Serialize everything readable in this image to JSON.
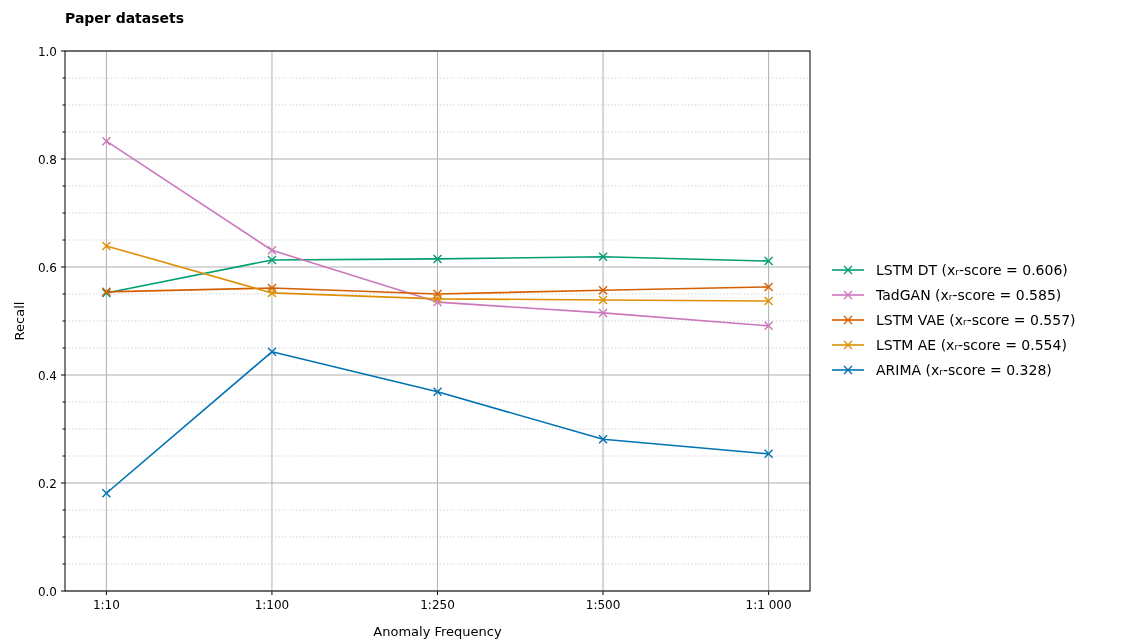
{
  "chart_data": {
    "type": "line",
    "title": "Paper datasets",
    "xlabel": "Anomaly Frequency",
    "ylabel": "Recall",
    "categories": [
      "1:10",
      "1:100",
      "1:250",
      "1:500",
      "1:1 000"
    ],
    "ylim": [
      0,
      1
    ],
    "yticks": [
      {
        "value": 0,
        "label": "0.0"
      },
      {
        "value": 0.2,
        "label": "0.2"
      },
      {
        "value": 0.4,
        "label": "0.4"
      },
      {
        "value": 0.6,
        "label": "0.6"
      },
      {
        "value": 0.8,
        "label": "0.8"
      },
      {
        "value": 1,
        "label": "1.0"
      },
      {
        "value": 0.05,
        "label": null
      },
      {
        "value": 0.1,
        "label": null
      },
      {
        "value": 0.15,
        "label": null
      },
      {
        "value": 0.25,
        "label": null
      },
      {
        "value": 0.3,
        "label": null
      },
      {
        "value": 0.35,
        "label": null
      },
      {
        "value": 0.45,
        "label": null
      },
      {
        "value": 0.5,
        "label": null
      },
      {
        "value": 0.55,
        "label": null
      },
      {
        "value": 0.65,
        "label": null
      },
      {
        "value": 0.7,
        "label": null
      },
      {
        "value": 0.75,
        "label": null
      },
      {
        "value": 0.85,
        "label": null
      },
      {
        "value": 0.9,
        "label": null
      },
      {
        "value": 0.95,
        "label": null
      }
    ],
    "grid": true,
    "legend": "right",
    "marker": "cross",
    "line_style": "solid",
    "series": [
      {
        "name": "LSTM DT (xᵣ-score = 0.606)",
        "color": "#029e73",
        "values": [
          0.552,
          0.613,
          0.615,
          0.619,
          0.611
        ]
      },
      {
        "name": "TadGAN (xᵣ-score = 0.585)",
        "color": "#cc78bc",
        "values": [
          0.833,
          0.631,
          0.535,
          0.515,
          0.491
        ]
      },
      {
        "name": "LSTM VAE (xᵣ-score = 0.557)",
        "color": "#d55e00",
        "values": [
          0.554,
          0.561,
          0.55,
          0.557,
          0.563
        ]
      },
      {
        "name": "LSTM AE (xᵣ-score = 0.554)",
        "color": "#de8f05",
        "values": [
          0.639,
          0.552,
          0.541,
          0.539,
          0.537
        ]
      },
      {
        "name": "ARIMA (xᵣ-score = 0.328)",
        "color": "#0173b2",
        "values": [
          0.181,
          0.443,
          0.369,
          0.281,
          0.254
        ]
      }
    ]
  }
}
